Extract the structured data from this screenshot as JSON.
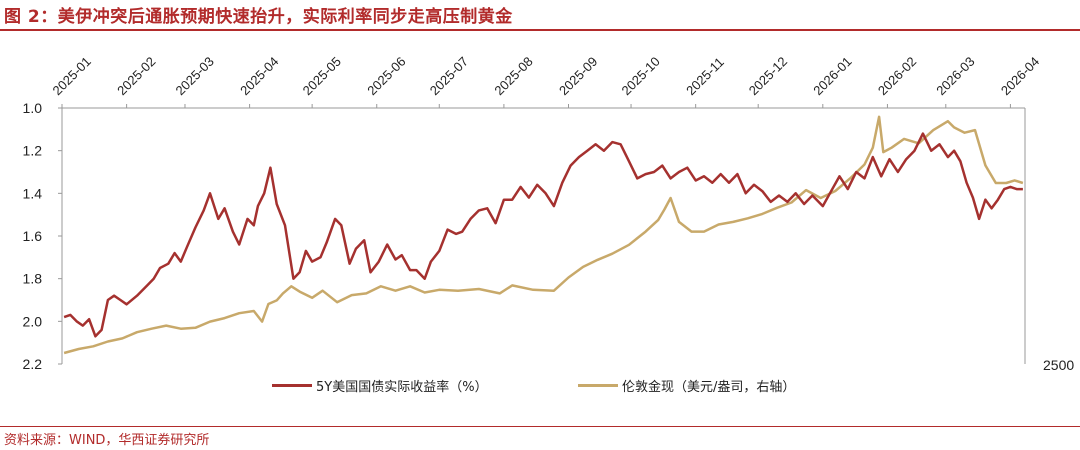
{
  "header": {
    "title": "图 2：美伊冲突后通胀预期快速抬升，实际利率同步走高压制黄金"
  },
  "footer": {
    "source": "资料来源：WIND，华西证券研究所"
  },
  "chart_data": {
    "type": "line",
    "x_ticks": [
      "2025-01",
      "2025-02",
      "2025-03",
      "2025-04",
      "2025-05",
      "2025-06",
      "2025-07",
      "2025-08",
      "2025-09",
      "2025-10",
      "2025-11",
      "2025-12",
      "2026-01",
      "2026-02",
      "2026-03",
      "2026-04"
    ],
    "y_left": {
      "ticks": [
        "1.0",
        "1.2",
        "1.4",
        "1.6",
        "1.8",
        "2.0",
        "2.2"
      ],
      "range": [
        1.0,
        2.2
      ],
      "inverted": true
    },
    "y_right": {
      "ticks_visible": [
        "2500"
      ]
    },
    "grid": false,
    "legend_position": "bottom",
    "series": [
      {
        "name": "5Y美国国债实际收益率（%）",
        "color": "#a5312f",
        "axis": "left",
        "x": [
          "2025-01-02",
          "2025-01-05",
          "2025-01-08",
          "2025-01-11",
          "2025-01-14",
          "2025-01-17",
          "2025-01-20",
          "2025-01-23",
          "2025-01-26",
          "2025-01-29",
          "2025-02-01",
          "2025-02-06",
          "2025-02-11",
          "2025-02-14",
          "2025-02-17",
          "2025-02-21",
          "2025-02-24",
          "2025-02-27",
          "2025-03-02",
          "2025-03-06",
          "2025-03-10",
          "2025-03-13",
          "2025-03-17",
          "2025-03-20",
          "2025-03-24",
          "2025-03-27",
          "2025-03-31",
          "2025-04-03",
          "2025-04-05",
          "2025-04-08",
          "2025-04-11",
          "2025-04-14",
          "2025-04-18",
          "2025-04-22",
          "2025-04-25",
          "2025-04-28",
          "2025-05-01",
          "2025-05-05",
          "2025-05-08",
          "2025-05-12",
          "2025-05-15",
          "2025-05-19",
          "2025-05-22",
          "2025-05-26",
          "2025-05-29",
          "2025-06-02",
          "2025-06-06",
          "2025-06-10",
          "2025-06-13",
          "2025-06-17",
          "2025-06-20",
          "2025-06-24",
          "2025-06-27",
          "2025-07-01",
          "2025-07-05",
          "2025-07-09",
          "2025-07-12",
          "2025-07-16",
          "2025-07-20",
          "2025-07-24",
          "2025-07-28",
          "2025-08-01",
          "2025-08-05",
          "2025-08-09",
          "2025-08-13",
          "2025-08-17",
          "2025-08-21",
          "2025-08-25",
          "2025-08-29",
          "2025-09-02",
          "2025-09-06",
          "2025-09-10",
          "2025-09-14",
          "2025-09-18",
          "2025-09-22",
          "2025-09-26",
          "2025-09-30",
          "2025-10-04",
          "2025-10-08",
          "2025-10-12",
          "2025-10-16",
          "2025-10-20",
          "2025-10-24",
          "2025-10-28",
          "2025-11-01",
          "2025-11-05",
          "2025-11-09",
          "2025-11-13",
          "2025-11-17",
          "2025-11-21",
          "2025-11-25",
          "2025-11-29",
          "2025-12-03",
          "2025-12-07",
          "2025-12-11",
          "2025-12-15",
          "2025-12-19",
          "2025-12-23",
          "2025-12-27",
          "2026-01-01",
          "2026-01-05",
          "2026-01-09",
          "2026-01-13",
          "2026-01-17",
          "2026-01-21",
          "2026-01-25",
          "2026-01-29",
          "2026-02-02",
          "2026-02-06",
          "2026-02-10",
          "2026-02-14",
          "2026-02-18",
          "2026-02-22",
          "2026-02-26",
          "2026-03-02",
          "2026-03-05",
          "2026-03-08",
          "2026-03-11",
          "2026-03-14",
          "2026-03-17",
          "2026-03-20",
          "2026-03-23",
          "2026-03-26",
          "2026-03-29",
          "2026-04-01",
          "2026-04-04",
          "2026-04-07"
        ],
        "values": [
          1.98,
          1.97,
          2.0,
          2.02,
          1.99,
          2.07,
          2.04,
          1.9,
          1.88,
          1.9,
          1.92,
          1.88,
          1.83,
          1.8,
          1.75,
          1.73,
          1.68,
          1.72,
          1.65,
          1.56,
          1.48,
          1.4,
          1.52,
          1.47,
          1.58,
          1.64,
          1.52,
          1.55,
          1.46,
          1.4,
          1.28,
          1.45,
          1.55,
          1.8,
          1.77,
          1.67,
          1.72,
          1.7,
          1.63,
          1.52,
          1.55,
          1.73,
          1.66,
          1.62,
          1.77,
          1.72,
          1.64,
          1.71,
          1.69,
          1.76,
          1.76,
          1.8,
          1.72,
          1.67,
          1.57,
          1.59,
          1.58,
          1.52,
          1.48,
          1.47,
          1.54,
          1.43,
          1.43,
          1.37,
          1.42,
          1.36,
          1.4,
          1.46,
          1.35,
          1.27,
          1.23,
          1.2,
          1.17,
          1.2,
          1.16,
          1.17,
          1.25,
          1.33,
          1.31,
          1.3,
          1.27,
          1.33,
          1.3,
          1.28,
          1.34,
          1.32,
          1.35,
          1.31,
          1.35,
          1.31,
          1.4,
          1.36,
          1.39,
          1.44,
          1.41,
          1.44,
          1.4,
          1.45,
          1.41,
          1.46,
          1.39,
          1.32,
          1.38,
          1.3,
          1.33,
          1.23,
          1.32,
          1.24,
          1.3,
          1.24,
          1.2,
          1.12,
          1.2,
          1.17,
          1.23,
          1.2,
          1.25,
          1.35,
          1.42,
          1.52,
          1.43,
          1.47,
          1.43,
          1.38,
          1.37,
          1.38,
          1.38
        ]
      },
      {
        "name": "伦敦金现（美元/盎司，右轴）",
        "color": "#c8a96a",
        "axis": "right",
        "x": [
          "2025-01-02",
          "2025-01-09",
          "2025-01-16",
          "2025-01-23",
          "2025-01-30",
          "2025-02-06",
          "2025-02-13",
          "2025-02-20",
          "2025-02-27",
          "2025-03-06",
          "2025-03-13",
          "2025-03-20",
          "2025-03-27",
          "2025-04-03",
          "2025-04-07",
          "2025-04-10",
          "2025-04-14",
          "2025-04-17",
          "2025-04-21",
          "2025-04-25",
          "2025-05-01",
          "2025-05-06",
          "2025-05-13",
          "2025-05-20",
          "2025-05-27",
          "2025-06-03",
          "2025-06-10",
          "2025-06-17",
          "2025-06-24",
          "2025-07-01",
          "2025-07-10",
          "2025-07-20",
          "2025-07-30",
          "2025-08-05",
          "2025-08-15",
          "2025-08-25",
          "2025-09-01",
          "2025-09-08",
          "2025-09-15",
          "2025-09-22",
          "2025-09-30",
          "2025-10-08",
          "2025-10-14",
          "2025-10-17",
          "2025-10-20",
          "2025-10-24",
          "2025-10-30",
          "2025-11-05",
          "2025-11-12",
          "2025-11-19",
          "2025-11-26",
          "2025-12-03",
          "2025-12-10",
          "2025-12-17",
          "2025-12-24",
          "2025-12-31",
          "2026-01-07",
          "2026-01-14",
          "2026-01-21",
          "2026-01-25",
          "2026-01-28",
          "2026-01-30",
          "2026-02-03",
          "2026-02-09",
          "2026-02-16",
          "2026-02-23",
          "2026-03-02",
          "2026-03-05",
          "2026-03-10",
          "2026-03-15",
          "2026-03-20",
          "2026-03-25",
          "2026-03-30",
          "2026-04-03",
          "2026-04-07"
        ],
        "values": [
          2625,
          2670,
          2700,
          2755,
          2790,
          2860,
          2900,
          2935,
          2900,
          2910,
          2980,
          3020,
          3075,
          3100,
          2980,
          3180,
          3220,
          3300,
          3380,
          3320,
          3250,
          3330,
          3200,
          3280,
          3300,
          3380,
          3330,
          3380,
          3310,
          3340,
          3330,
          3350,
          3300,
          3390,
          3340,
          3330,
          3480,
          3600,
          3680,
          3750,
          3850,
          4000,
          4130,
          4250,
          4380,
          4110,
          4000,
          4000,
          4080,
          4110,
          4150,
          4200,
          4270,
          4330,
          4470,
          4380,
          4460,
          4600,
          4760,
          4950,
          5300,
          4900,
          4950,
          5050,
          5000,
          5150,
          5250,
          5180,
          5120,
          5150,
          4750,
          4550,
          4550,
          4580,
          4550
        ]
      }
    ]
  }
}
